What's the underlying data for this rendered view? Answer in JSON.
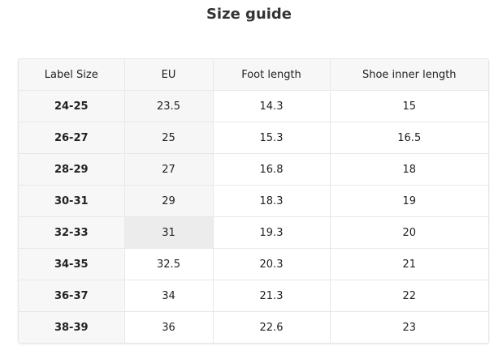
{
  "title": "Size guide",
  "table": {
    "headers": [
      "Label Size",
      "EU",
      "Foot length",
      "Shoe inner length"
    ],
    "rows": [
      [
        "24-25",
        "23.5",
        "14.3",
        "15"
      ],
      [
        "26-27",
        "25",
        "15.3",
        "16.5"
      ],
      [
        "28-29",
        "27",
        "16.8",
        "18"
      ],
      [
        "30-31",
        "29",
        "18.3",
        "19"
      ],
      [
        "32-33",
        "31",
        "19.3",
        "20"
      ],
      [
        "34-35",
        "32.5",
        "20.3",
        "21"
      ],
      [
        "36-37",
        "34",
        "21.3",
        "22"
      ],
      [
        "38-39",
        "36",
        "22.6",
        "23"
      ]
    ]
  }
}
